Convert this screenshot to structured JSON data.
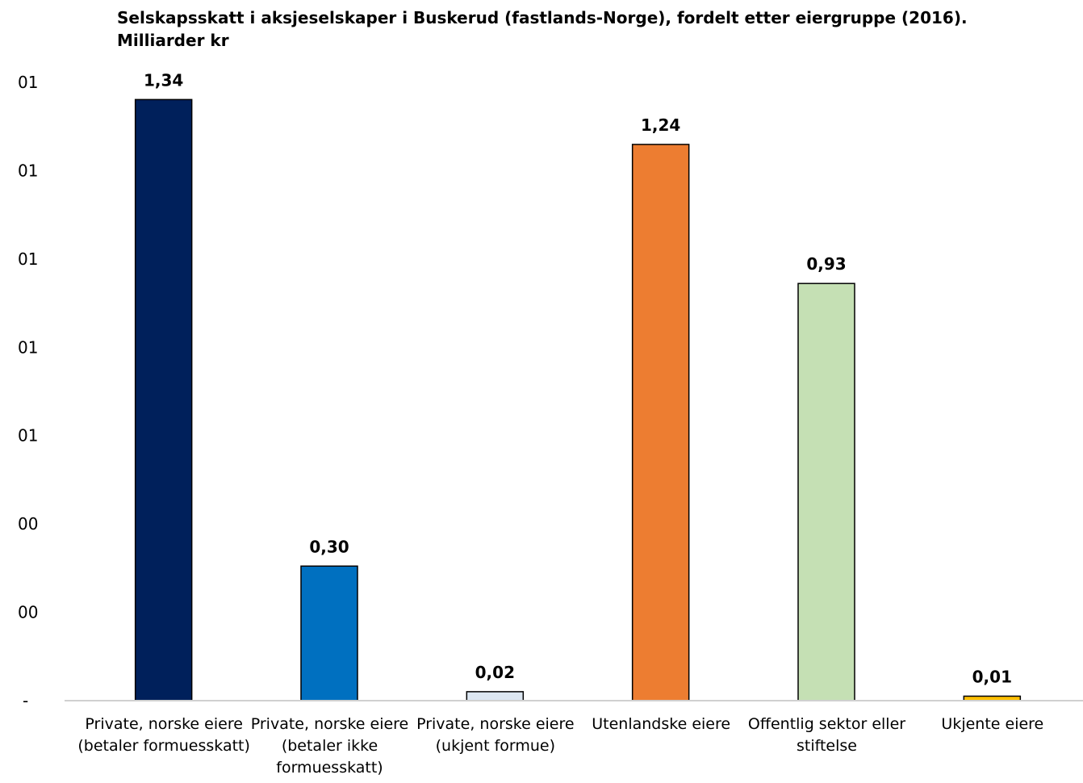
{
  "chart_data": {
    "type": "bar",
    "title": "Selskapsskatt i aksjeselskaper i Buskerud (fastlands-Norge), fordelt etter eiergruppe (2016). Milliarder kr",
    "categories": [
      "Private, norske eiere (betaler formuesskatt)",
      "Private, norske eiere (betaler ikke formuesskatt)",
      "Private, norske eiere (ukjent formue)",
      "Utenlandske eiere",
      "Offentlig sektor eller stiftelse",
      "Ukjente eiere"
    ],
    "values": [
      1.34,
      0.3,
      0.02,
      1.24,
      0.93,
      0.01
    ],
    "value_labels": [
      "1,34",
      "0,30",
      "0,02",
      "1,24",
      "0,93",
      "0,01"
    ],
    "colors": [
      "#00205B",
      "#0070C0",
      "#DCE6F1",
      "#ED7D31",
      "#C5E0B4",
      "#FFC000"
    ],
    "ytick_labels": [
      "-",
      "00",
      "00",
      "01",
      "01",
      "01",
      "01",
      "01"
    ],
    "ylim": [
      0,
      1.4
    ],
    "xlabel": "",
    "ylabel": "",
    "grid": false
  }
}
